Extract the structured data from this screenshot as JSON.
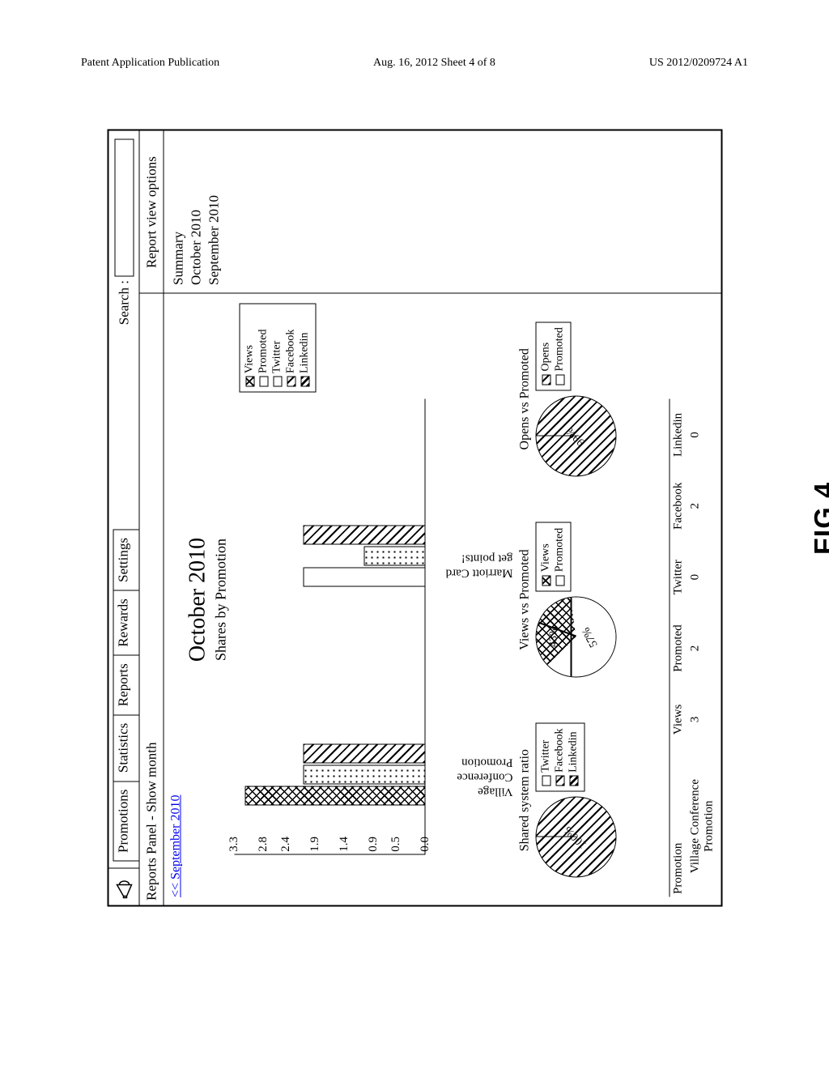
{
  "header": {
    "left": "Patent Application Publication",
    "center": "Aug. 16, 2012  Sheet 4 of 8",
    "right": "US 2012/0209724 A1"
  },
  "figure_label": "FIG.4",
  "tabs": [
    "Promotions",
    "Statistics",
    "Reports",
    "Rewards",
    "Settings"
  ],
  "search_label": "Search :",
  "panel_title": "Reports Panel - Show month",
  "report_view_title": "Report view options",
  "report_view_items": [
    "Summary",
    "October 2010",
    "September 2010"
  ],
  "nav_prev": "<< September 2010",
  "chart": {
    "type": "grouped-bar",
    "title": "October 2010",
    "subtitle": "Shares by Promotion",
    "y_ticks": [
      3.3,
      2.8,
      2.4,
      1.9,
      1.4,
      0.9,
      0.5,
      0.0
    ],
    "y_max": 3.3,
    "series": [
      {
        "name": "Views",
        "pattern": "p-cross"
      },
      {
        "name": "Promoted",
        "pattern": "p-empty"
      },
      {
        "name": "Twitter",
        "pattern": "p-empty"
      },
      {
        "name": "Facebook",
        "pattern": "p-hatch"
      },
      {
        "name": "Linkedin",
        "pattern": "p-dhatch"
      }
    ],
    "categories": [
      {
        "label_lines": [
          "Village",
          "Conference",
          "Promotion"
        ],
        "values": {
          "Views": 3.1,
          "Promoted": 2.1,
          "Facebook": 2.1
        },
        "shown": [
          "Views",
          "Promoted",
          "Facebook"
        ],
        "pattern_override": {
          "Promoted": "p-dots"
        }
      },
      {
        "label_lines": [
          "Marriott Card",
          "get points!"
        ],
        "values": {
          "Views": 2.1,
          "Promoted": 1.05,
          "Facebook": 2.1
        },
        "shown": [
          "Views",
          "Promoted",
          "Facebook"
        ],
        "pattern_override": {
          "Views": "p-empty",
          "Promoted": "p-dots",
          "Facebook": "p-hatch"
        }
      }
    ]
  },
  "pies": [
    {
      "title": "Shared system ratio",
      "slices": [
        {
          "label": "100%",
          "pct": 100,
          "pattern": "p-hatch"
        }
      ],
      "legend": [
        {
          "name": "Twitter",
          "pattern": "p-empty"
        },
        {
          "name": "Facebook",
          "pattern": "p-hatch"
        },
        {
          "name": "Linkedin",
          "pattern": "p-dhatch"
        }
      ]
    },
    {
      "title": "Views vs Promoted",
      "slices": [
        {
          "label": "43%",
          "pct": 43,
          "pattern": "p-cross"
        },
        {
          "label": "57%",
          "pct": 57,
          "pattern": "p-empty"
        }
      ],
      "legend": [
        {
          "name": "Views",
          "pattern": "p-cross"
        },
        {
          "name": "Promoted",
          "pattern": "p-empty"
        }
      ]
    },
    {
      "title": "Opens vs Promoted",
      "slices": [
        {
          "label": "99%",
          "pct": 99,
          "pattern": "p-hatch"
        }
      ],
      "legend": [
        {
          "name": "Opens",
          "pattern": "p-hatch"
        },
        {
          "name": "Promoted",
          "pattern": "p-empty"
        }
      ]
    }
  ],
  "table": {
    "headers": [
      "Promotion",
      "Views",
      "Promoted",
      "Twitter",
      "Facebook",
      "Linkedin"
    ],
    "rows": [
      [
        "Village Conference Promotion",
        "3",
        "2",
        "0",
        "2",
        "0"
      ]
    ]
  },
  "colors": {
    "stroke": "#000000",
    "background": "#ffffff"
  }
}
